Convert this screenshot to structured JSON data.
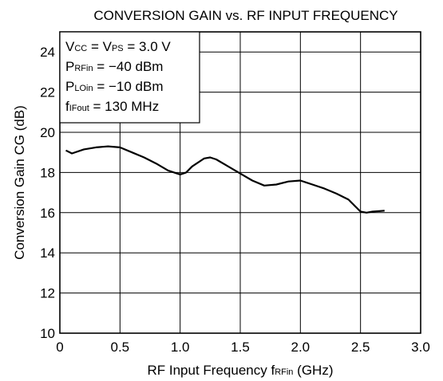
{
  "chart_data": {
    "type": "line",
    "title": "CONVERSION GAIN  vs.  RF INPUT FREQUENCY",
    "xlabel": {
      "main": "RF Input Frequency",
      "sym": "f",
      "sub": "RFin",
      "unit": " (GHz)"
    },
    "ylabel": {
      "main": "Conversion Gain",
      "sym": "CG (dB)"
    },
    "xlim": [
      0,
      3.0
    ],
    "ylim": [
      10,
      25
    ],
    "x_ticks": [
      0,
      0.5,
      1.0,
      1.5,
      2.0,
      2.5,
      3.0
    ],
    "x_tick_labels": [
      "0",
      "0.5",
      "1.0",
      "1.5",
      "2.0",
      "2.5",
      "3.0"
    ],
    "y_ticks": [
      10,
      12,
      14,
      16,
      18,
      20,
      22,
      24
    ],
    "y_tick_labels": [
      "10",
      "12",
      "14",
      "16",
      "18",
      "20",
      "22",
      "24"
    ],
    "grid": true,
    "legend_box": {
      "lines": [
        {
          "a": "V",
          "a_sub": "CC",
          "b": " = V",
          "b_sub": "PS",
          "c": " = 3.0 V"
        },
        {
          "a": "P",
          "a_sub": "RFin",
          "b": " = −40 dBm"
        },
        {
          "a": "P",
          "a_sub": "LOin",
          "b": " = −10 dBm"
        },
        {
          "a": "f",
          "a_sub": "IFout",
          "b": " = 130 MHz"
        }
      ]
    },
    "series": [
      {
        "x": [
          0.05,
          0.1,
          0.2,
          0.3,
          0.4,
          0.5,
          0.6,
          0.7,
          0.8,
          0.9,
          1.0,
          1.05,
          1.1,
          1.2,
          1.25,
          1.3,
          1.4,
          1.5,
          1.6,
          1.7,
          1.8,
          1.9,
          2.0,
          2.1,
          2.2,
          2.3,
          2.4,
          2.5,
          2.55,
          2.6,
          2.7
        ],
        "y": [
          19.1,
          18.95,
          19.15,
          19.25,
          19.3,
          19.25,
          19.0,
          18.75,
          18.45,
          18.1,
          17.9,
          18.0,
          18.3,
          18.7,
          18.75,
          18.65,
          18.3,
          17.95,
          17.6,
          17.35,
          17.4,
          17.55,
          17.6,
          17.4,
          17.2,
          16.95,
          16.65,
          16.05,
          16.0,
          16.05,
          16.1
        ]
      }
    ]
  }
}
